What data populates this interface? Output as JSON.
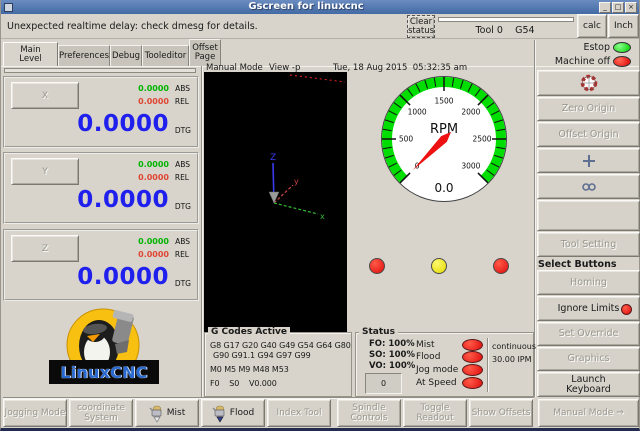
{
  "window": {
    "title": "Gscreen for linuxcnc",
    "minimize": "_",
    "maximize": "□",
    "close": "×"
  },
  "topbar": {
    "message": "Unexpected realtime delay: check dmesg for details.",
    "clear_button": "Clear status",
    "tool": "Tool 0",
    "coord_system": "G54",
    "calc_button": "calc",
    "units_button": "Inch"
  },
  "tabs": {
    "t0": "Main Level",
    "t1": "Preferences",
    "t2": "Debug",
    "t3": "Tooleditor",
    "t4": "Offset Page"
  },
  "viewer": {
    "mode": "Manual Mode",
    "view": "View -p",
    "datetime": "Tue, 18 Aug 2015  05:32:35 am",
    "axis_x": "x",
    "axis_y": "y",
    "axis_z": "Z"
  },
  "dro": {
    "abs_label": "ABS",
    "rel_label": "REL",
    "dtg_label": "DTG",
    "axes": [
      {
        "button": "X",
        "abs": "0.0000",
        "rel": "0.0000",
        "dtg": "0.0000"
      },
      {
        "button": "Y",
        "abs": "0.0000",
        "rel": "0.0000",
        "dtg": "0.0000"
      },
      {
        "button": "Z",
        "abs": "0.0000",
        "rel": "0.0000",
        "dtg": "0.0000"
      }
    ]
  },
  "logo": {
    "text": "LinuxCNC"
  },
  "gauge": {
    "label": "RPM",
    "value": "0.0",
    "min": 0,
    "max": 3000,
    "major_step": 500,
    "minor_step": 100,
    "start_angle": 225,
    "sweep": 270,
    "ring_color": "#00dd00",
    "needle_color": "#ee1111",
    "tick_labels": [
      "0",
      "500",
      "1000",
      "1500",
      "2000",
      "2500",
      "3000"
    ]
  },
  "lights": {
    "left_color": "#ee1111",
    "mid_color": "#f2e800",
    "right_color": "#ee1111"
  },
  "gcodes": {
    "title": "G Codes Active",
    "line1": "G8 G17 G20 G40 G49 G54 G64 G80",
    "line2": "G90 G91.1 G94 G97 G99",
    "line3": "M0 M5 M9 M48 M53",
    "line4": "F0    S0    V0.000"
  },
  "status": {
    "title": "Status",
    "fo": "FO: 100%",
    "so": "SO: 100%",
    "vo": "VO: 100%",
    "counter": "0",
    "row_mist": "Mist",
    "row_flood": "Flood",
    "row_jog": "Jog mode",
    "row_atspeed": "At Speed",
    "jog_mode": "continuous",
    "jog_rate": "30.00 IPM"
  },
  "sidebar": {
    "estop": "Estop",
    "machine": "Machine off",
    "zero_origin": "Zero Origin",
    "offset_origin": "Offset Origin",
    "tool_setting": "Tool Setting",
    "select_buttons": "Select Buttons",
    "homing": "Homing",
    "ignore_limits": "Ignore Limits",
    "set_override": "Set Override",
    "graphics": "Graphics",
    "launch_keyboard": "Launch Keyboard"
  },
  "toolbar": {
    "jogging": "Jogging Mode",
    "coord": "coordinate System",
    "mist": "Mist",
    "flood": "Flood",
    "index_tool": "Index Tool",
    "spindle": "Spindle Controls",
    "toggle_readout": "Toggle Readout",
    "show_offsets": "Show Offsets",
    "manual_mode": "Manual Mode",
    "arrow": "⇒"
  }
}
